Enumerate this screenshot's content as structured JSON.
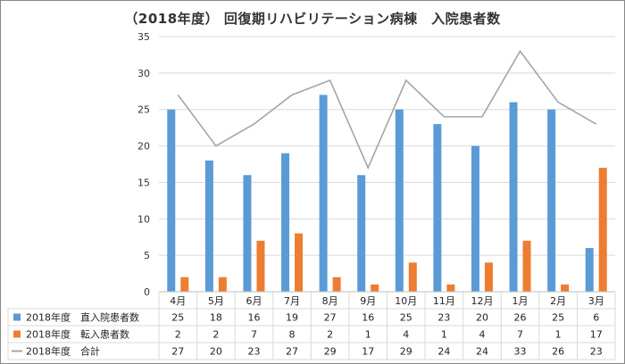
{
  "chart_data": {
    "type": "bar",
    "title": "（2018年度） 回復期リハビリテーション病棟　入院患者数",
    "categories": [
      "4月",
      "5月",
      "6月",
      "7月",
      "8月",
      "9月",
      "10月",
      "11月",
      "12月",
      "1月",
      "2月",
      "3月"
    ],
    "ylim": [
      0,
      35
    ],
    "yticks": [
      0,
      5,
      10,
      15,
      20,
      25,
      30,
      35
    ],
    "grid": true,
    "legend": "data-table",
    "series": [
      {
        "name": "2018年度　直入院患者数",
        "type": "bar",
        "color": "#5b9bd5",
        "values": [
          25,
          18,
          16,
          19,
          27,
          16,
          25,
          23,
          20,
          26,
          25,
          6
        ]
      },
      {
        "name": "2018年度　転入患者数",
        "type": "bar",
        "color": "#ed7d31",
        "values": [
          2,
          2,
          7,
          8,
          2,
          1,
          4,
          1,
          4,
          7,
          1,
          17
        ]
      },
      {
        "name": "2018年度　合計",
        "type": "line",
        "color": "#a5a5a5",
        "values": [
          27,
          20,
          23,
          27,
          29,
          17,
          29,
          24,
          24,
          33,
          26,
          23
        ]
      }
    ]
  }
}
